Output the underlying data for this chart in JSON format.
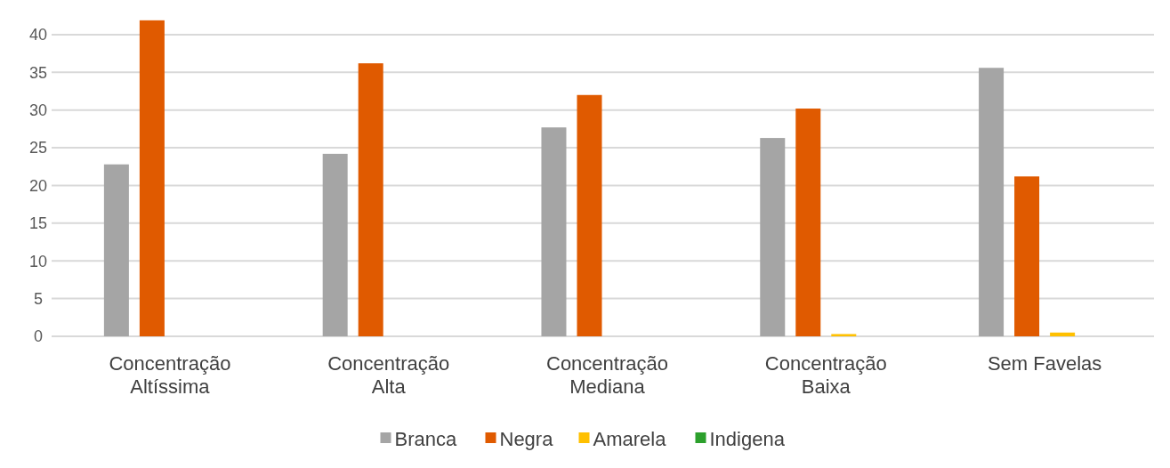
{
  "chart_data": {
    "type": "bar",
    "categories": [
      "Concentração Altíssima",
      "Concentração Alta",
      "Concentração Mediana",
      "Concentração Baixa",
      "Sem Favelas"
    ],
    "series": [
      {
        "name": "Branca",
        "color": "#a5a5a5",
        "values": [
          22.8,
          24.2,
          27.7,
          26.3,
          35.6
        ]
      },
      {
        "name": "Negra",
        "color": "#e05a00",
        "values": [
          41.9,
          36.2,
          32.0,
          30.2,
          21.2
        ]
      },
      {
        "name": "Amarela",
        "color": "#ffc000",
        "values": [
          0,
          0,
          0,
          0.3,
          0.5
        ]
      },
      {
        "name": "Indigena",
        "color": "#2ca02c",
        "values": [
          0,
          0,
          0,
          0,
          0
        ]
      }
    ],
    "ylim": [
      0,
      42
    ],
    "yticks": [
      0,
      5,
      10,
      15,
      20,
      25,
      30,
      35,
      40
    ],
    "grid": "y",
    "legend": "bottom"
  }
}
